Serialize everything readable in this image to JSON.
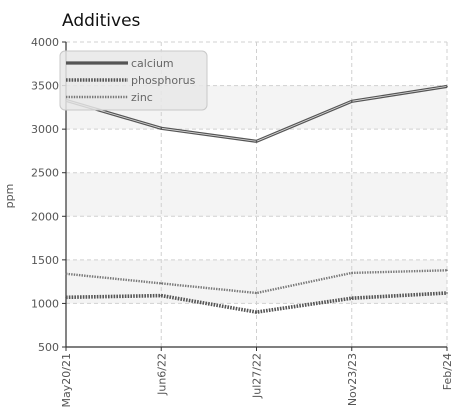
{
  "chart_data": {
    "type": "line",
    "title": "Additives",
    "xlabel": "",
    "ylabel": "ppm",
    "ylim": [
      500,
      4000
    ],
    "yticks": [
      500,
      1000,
      1500,
      2000,
      2500,
      3000,
      3500,
      4000
    ],
    "categories": [
      "May20/21",
      "Jun6/22",
      "Jul27/22",
      "Nov23/23",
      "Feb/24"
    ],
    "series": [
      {
        "name": "calcium",
        "values": [
          3330,
          3010,
          2860,
          3320,
          3490
        ],
        "style": "solid",
        "color": "#555555"
      },
      {
        "name": "phosphorus",
        "values": [
          1070,
          1090,
          900,
          1060,
          1120
        ],
        "style": "dotted",
        "color": "#555555"
      },
      {
        "name": "zinc",
        "values": [
          1340,
          1230,
          1120,
          1350,
          1380
        ],
        "style": "dotted-thin",
        "color": "#777777"
      }
    ],
    "grid": true,
    "legend_position": "top-left",
    "alternate_band_color": "#f4f4f4"
  }
}
